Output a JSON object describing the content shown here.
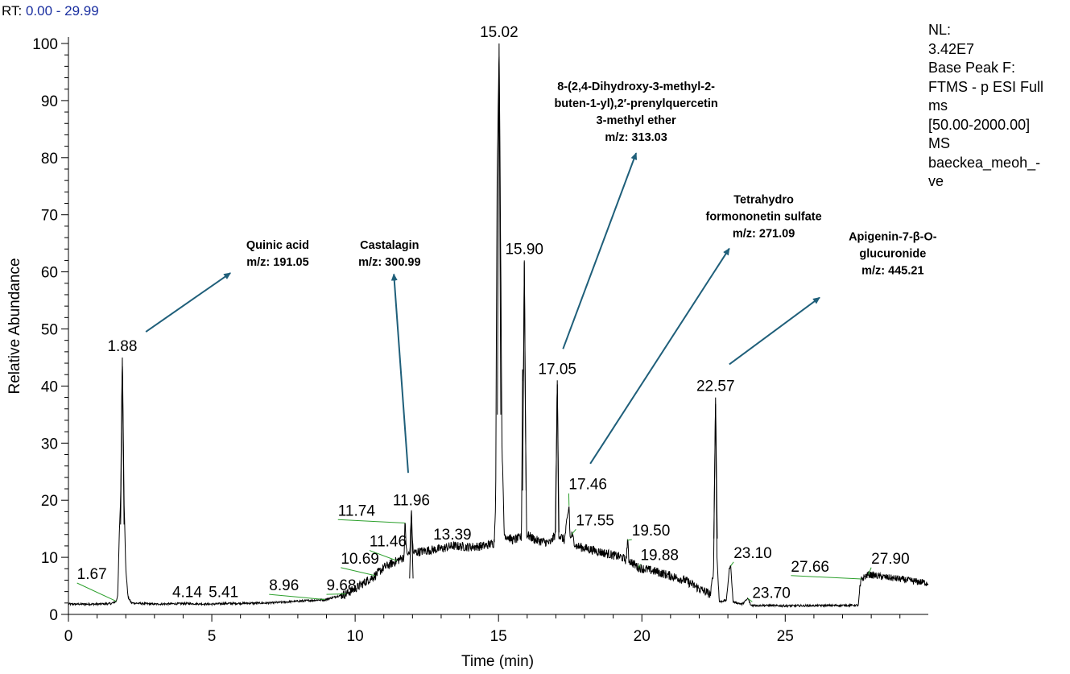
{
  "header": {
    "rt_label": "RT:",
    "rt_range": "0.00 - 29.99"
  },
  "info_panel": {
    "lines": [
      "NL:",
      "3.42E7",
      "Base Peak F:",
      "FTMS - p ESI Full",
      "ms",
      "[50.00-2000.00]",
      "MS",
      "baeckea_meoh_-",
      "ve"
    ]
  },
  "colors": {
    "trace": "#000000",
    "arrow": "#1f5f7a",
    "leader": "#2ca02c",
    "rt_text": "#1a2fa0"
  },
  "chart_data": {
    "type": "line",
    "title": "",
    "xlabel": "Time (min)",
    "ylabel": "Relative Abundance",
    "xlim": [
      0,
      29.99
    ],
    "ylim": [
      0,
      100
    ],
    "xticks": [
      0,
      5,
      10,
      15,
      20,
      25
    ],
    "yticks": [
      0,
      10,
      20,
      30,
      40,
      50,
      60,
      70,
      80,
      90,
      100
    ],
    "baseline_trace": [
      [
        0,
        1.8
      ],
      [
        1,
        1.8
      ],
      [
        1.5,
        1.9
      ],
      [
        1.67,
        2.3
      ],
      [
        1.72,
        3.5
      ],
      [
        1.78,
        15
      ],
      [
        1.82,
        20
      ],
      [
        1.86,
        38
      ],
      [
        1.88,
        45
      ],
      [
        1.9,
        38
      ],
      [
        1.94,
        20
      ],
      [
        2.0,
        8
      ],
      [
        2.08,
        3
      ],
      [
        2.2,
        2
      ],
      [
        3,
        1.8
      ],
      [
        4.14,
        1.9
      ],
      [
        5,
        1.8
      ],
      [
        5.41,
        1.9
      ],
      [
        7,
        2
      ],
      [
        8.96,
        2.6
      ],
      [
        9.68,
        3.6
      ],
      [
        10,
        4.5
      ],
      [
        10.69,
        6.8
      ],
      [
        11,
        8.2
      ],
      [
        11.46,
        9.4
      ],
      [
        11.7,
        10
      ],
      [
        11.74,
        16
      ],
      [
        11.8,
        10.5
      ],
      [
        11.9,
        10.5
      ],
      [
        11.96,
        18
      ],
      [
        12.02,
        10.8
      ],
      [
        12.5,
        11.2
      ],
      [
        13,
        11.5
      ],
      [
        13.39,
        12
      ],
      [
        14,
        11.8
      ],
      [
        14.5,
        12
      ],
      [
        14.85,
        12.5
      ],
      [
        14.9,
        20
      ],
      [
        14.95,
        75
      ],
      [
        15.02,
        100
      ],
      [
        15.06,
        75
      ],
      [
        15.12,
        30
      ],
      [
        15.2,
        14
      ],
      [
        15.5,
        13
      ],
      [
        15.8,
        13.5
      ],
      [
        15.84,
        43
      ],
      [
        15.87,
        40
      ],
      [
        15.9,
        62
      ],
      [
        15.93,
        40
      ],
      [
        15.98,
        14
      ],
      [
        16.3,
        13
      ],
      [
        16.8,
        12.5
      ],
      [
        16.98,
        14
      ],
      [
        17.05,
        41
      ],
      [
        17.1,
        14
      ],
      [
        17.3,
        13
      ],
      [
        17.46,
        19
      ],
      [
        17.5,
        13
      ],
      [
        17.55,
        14
      ],
      [
        17.7,
        12
      ],
      [
        18.5,
        11
      ],
      [
        19.3,
        10
      ],
      [
        19.45,
        9.5
      ],
      [
        19.5,
        13
      ],
      [
        19.55,
        9.5
      ],
      [
        19.88,
        8.2
      ],
      [
        20.5,
        7.5
      ],
      [
        21.5,
        6
      ],
      [
        22,
        4.5
      ],
      [
        22.4,
        3.5
      ],
      [
        22.5,
        8
      ],
      [
        22.57,
        38
      ],
      [
        22.62,
        10
      ],
      [
        22.7,
        2.2
      ],
      [
        22.95,
        2.5
      ],
      [
        23.05,
        8
      ],
      [
        23.1,
        8.5
      ],
      [
        23.18,
        2.2
      ],
      [
        23.5,
        1.8
      ],
      [
        23.7,
        2.8
      ],
      [
        23.8,
        1.6
      ],
      [
        25,
        1.5
      ],
      [
        27.55,
        1.6
      ],
      [
        27.6,
        4.5
      ],
      [
        27.66,
        6.2
      ],
      [
        27.9,
        7
      ],
      [
        28.5,
        6.5
      ],
      [
        29,
        6.2
      ],
      [
        29.5,
        5.8
      ],
      [
        29.99,
        5.5
      ]
    ],
    "peak_labels": [
      {
        "rt": "1.88",
        "x": 1.88,
        "y": 45
      },
      {
        "rt": "15.02",
        "x": 15.02,
        "y": 100
      },
      {
        "rt": "15.90",
        "x": 15.9,
        "y": 62
      },
      {
        "rt": "17.05",
        "x": 17.05,
        "y": 41
      },
      {
        "rt": "22.57",
        "x": 22.57,
        "y": 38
      },
      {
        "rt": "11.96",
        "x": 11.96,
        "y": 18
      },
      {
        "rt": "13.39",
        "x": 13.39,
        "y": 12
      },
      {
        "rt": "4.14",
        "x": 4.14,
        "y": 1.9
      },
      {
        "rt": "5.41",
        "x": 5.41,
        "y": 1.9
      }
    ],
    "offset_labels": [
      {
        "rt": "1.67",
        "x": 1.67,
        "y": 2.3,
        "lx": 0.3,
        "ly": 5.5
      },
      {
        "rt": "8.96",
        "x": 8.96,
        "y": 2.6,
        "lx": 7.0,
        "ly": 3.5
      },
      {
        "rt": "9.68",
        "x": 9.68,
        "y": 3.6,
        "lx": 9.0,
        "ly": 3.5
      },
      {
        "rt": "10.69",
        "x": 10.69,
        "y": 6.8,
        "lx": 9.5,
        "ly": 8.2
      },
      {
        "rt": "11.46",
        "x": 11.46,
        "y": 9.4,
        "lx": 10.5,
        "ly": 11.2
      },
      {
        "rt": "11.74",
        "x": 11.74,
        "y": 16,
        "lx": 9.4,
        "ly": 16.6
      },
      {
        "rt": "17.46",
        "x": 17.46,
        "y": 19,
        "lx": 17.45,
        "ly": 21.2
      },
      {
        "rt": "17.55",
        "x": 17.55,
        "y": 14,
        "lx": 17.7,
        "ly": 14.9
      },
      {
        "rt": "19.50",
        "x": 19.5,
        "y": 13,
        "lx": 19.65,
        "ly": 13.1
      },
      {
        "rt": "19.88",
        "x": 19.88,
        "y": 8.2,
        "lx": 19.95,
        "ly": 8.8
      },
      {
        "rt": "23.10",
        "x": 23.1,
        "y": 8.5,
        "lx": 23.2,
        "ly": 9.2
      },
      {
        "rt": "23.70",
        "x": 23.7,
        "y": 2.8,
        "lx": 23.85,
        "ly": 2.2
      },
      {
        "rt": "27.66",
        "x": 27.66,
        "y": 6.2,
        "lx": 25.2,
        "ly": 6.8
      },
      {
        "rt": "27.90",
        "x": 27.9,
        "y": 7,
        "lx": 28.0,
        "ly": 8.2
      }
    ],
    "annotations": [
      {
        "lines": [
          "Quinic acid",
          "m/z: 191.05"
        ],
        "tx": 7.3,
        "ty": 64,
        "from": [
          2.7,
          49.5
        ],
        "to": [
          5.65,
          59.8
        ]
      },
      {
        "lines": [
          "Castalagin",
          "m/z: 300.99"
        ],
        "tx": 11.2,
        "ty": 64,
        "from": [
          11.85,
          24.8
        ],
        "to": [
          11.35,
          59.6
        ]
      },
      {
        "lines": [
          "8-(2,4-Dihydroxy-3-methyl-2-",
          "buten-1-yl),2′-prenylquercetin",
          "3-methyl ether",
          "m/z: 313.03"
        ],
        "tx": 19.8,
        "ty": 91.8,
        "from": [
          17.25,
          46.5
        ],
        "to": [
          19.8,
          80.8
        ]
      },
      {
        "lines": [
          "Tetrahydro",
          "formononetin sulfate",
          "m/z: 271.09"
        ],
        "tx": 24.25,
        "ty": 72,
        "from": [
          18.2,
          26.4
        ],
        "to": [
          23.05,
          64.1
        ]
      },
      {
        "lines": [
          "Apigenin-7-β-O-",
          "glucuronide",
          "m/z: 445.21"
        ],
        "tx": 28.75,
        "ty": 65.5,
        "from": [
          23.05,
          43.8
        ],
        "to": [
          26.2,
          55.5
        ]
      }
    ]
  }
}
